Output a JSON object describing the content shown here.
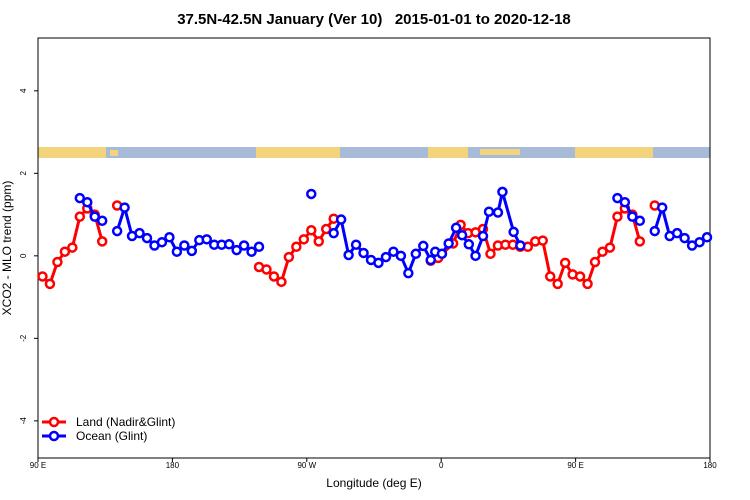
{
  "chart_data": {
    "type": "line",
    "title": "37.5N-42.5N January (Ver 10)   2015-01-01 to 2020-12-18",
    "x_label": "Longitude (deg E)",
    "y_label": "XCO2 - MLO trend (ppm)",
    "xlim": [
      90,
      540
    ],
    "ylim": [
      -4.9,
      5.28
    ],
    "xticks": [
      {
        "value": 90,
        "label": "90 E"
      },
      {
        "value": 180,
        "label": "180"
      },
      {
        "value": 270,
        "label": "90 W"
      },
      {
        "value": 360,
        "label": "0"
      },
      {
        "value": 450,
        "label": "90 E"
      },
      {
        "value": 540,
        "label": "180"
      }
    ],
    "yticks": [
      -4,
      -2,
      0,
      2,
      4
    ],
    "legend": "bottom-left",
    "series": [
      {
        "name": "Land (Nadir&Glint)",
        "color": "#ff0000",
        "x": [
          93,
          98,
          103,
          108,
          113,
          118,
          123,
          128,
          133,
          null,
          143,
          null,
          238,
          243,
          248,
          253,
          258,
          263,
          268,
          273,
          278,
          283,
          288,
          null,
          353,
          358,
          368,
          373,
          378,
          383,
          388,
          393,
          398,
          403,
          408,
          413,
          418,
          423,
          428,
          433,
          438,
          443,
          448,
          453,
          458,
          463,
          468,
          473,
          478,
          483,
          488,
          493,
          null,
          503
        ],
        "values": [
          -0.5,
          -0.68,
          -0.15,
          0.1,
          0.2,
          0.95,
          1.15,
          1.0,
          0.35,
          null,
          1.22,
          null,
          -0.27,
          -0.33,
          -0.5,
          -0.63,
          -0.03,
          0.22,
          0.4,
          0.62,
          0.35,
          0.65,
          0.9,
          null,
          -0.12,
          -0.05,
          0.3,
          0.75,
          0.55,
          0.57,
          0.65,
          0.05,
          0.25,
          0.27,
          0.27,
          0.22,
          0.22,
          0.35,
          0.37,
          -0.5,
          -0.68,
          -0.17,
          -0.45,
          -0.5,
          -0.68,
          -0.15,
          0.1,
          0.2,
          0.95,
          1.15,
          1.0,
          0.35,
          null,
          1.22
        ]
      },
      {
        "name": "Ocean (Glint)",
        "color": "#0000ff",
        "x": [
          118,
          123,
          128,
          133,
          null,
          143,
          148,
          153,
          158,
          163,
          168,
          173,
          178,
          183,
          188,
          193,
          198,
          203,
          208,
          213,
          218,
          223,
          228,
          233,
          238,
          null,
          273,
          null,
          288,
          293,
          298,
          303,
          308,
          313,
          318,
          323,
          328,
          333,
          338,
          343,
          348,
          353,
          356,
          360.5,
          365,
          370,
          374,
          378.5,
          383,
          388,
          392,
          398,
          401,
          408.5,
          413,
          null,
          478,
          483,
          488,
          493,
          null,
          503,
          508,
          513,
          518,
          523,
          528,
          533,
          538
        ],
        "values": [
          1.4,
          1.3,
          0.95,
          0.85,
          null,
          0.6,
          1.17,
          0.48,
          0.55,
          0.43,
          0.25,
          0.33,
          0.45,
          0.1,
          0.25,
          0.12,
          0.38,
          0.4,
          0.27,
          0.27,
          0.28,
          0.14,
          0.25,
          0.1,
          0.22,
          null,
          1.5,
          null,
          0.55,
          0.88,
          0.02,
          0.27,
          0.07,
          -0.1,
          -0.17,
          -0.03,
          0.1,
          0,
          -0.42,
          0.05,
          0.24,
          -0.1,
          0.1,
          0.05,
          0.3,
          0.68,
          0.5,
          0.28,
          0,
          0.48,
          1.07,
          1.05,
          1.55,
          0.58,
          0.25,
          null,
          1.4,
          1.3,
          0.95,
          0.85,
          null,
          0.6,
          1.17,
          0.48,
          0.55,
          0.43,
          0.25,
          0.33,
          0.45
        ]
      }
    ]
  }
}
